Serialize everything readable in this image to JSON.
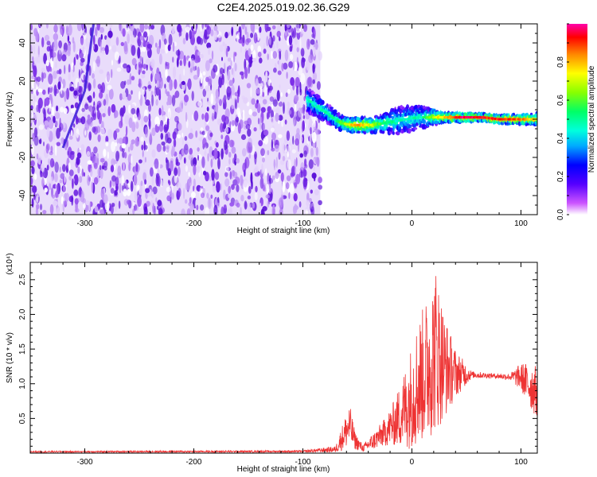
{
  "figure": {
    "title": "C2E4.2025.019.02.36.G29"
  },
  "colors": {
    "line": "#ee3333",
    "axis": "#000000",
    "background": "#ffffff",
    "noise": "#7b2ee8"
  },
  "chart_data": [
    {
      "type": "heatmap",
      "xlabel": "Height of straight line (km)",
      "ylabel": "Frequency (Hz)",
      "xlim": [
        -350,
        115
      ],
      "ylim": [
        -50,
        50
      ],
      "x_ticks": [
        -300,
        -200,
        -100,
        0,
        100
      ],
      "x_tick_labels": [
        "-300",
        "-200",
        "-100",
        "0",
        "100"
      ],
      "y_ticks": [
        -40,
        -20,
        0,
        20,
        40
      ],
      "y_tick_labels": [
        "-40",
        "-20",
        "0",
        "20",
        "40"
      ],
      "colorbar": {
        "label": "Normalized spectral amplitude",
        "range": [
          0,
          1
        ],
        "ticks": [
          0.0,
          0.2,
          0.4,
          0.6,
          0.8
        ],
        "tick_labels": [
          "0.0",
          "0.2",
          "0.4",
          "0.6",
          "0.8"
        ]
      },
      "noise_region_x": [
        -350,
        -84
      ],
      "signal_ridge": [
        {
          "x": -95,
          "f": 10
        },
        {
          "x": -85,
          "f": 6
        },
        {
          "x": -75,
          "f": 2
        },
        {
          "x": -65,
          "f": -2
        },
        {
          "x": -55,
          "f": -3
        },
        {
          "x": -45,
          "f": -3
        },
        {
          "x": -35,
          "f": -3
        },
        {
          "x": -25,
          "f": -2
        },
        {
          "x": -15,
          "f": -1
        },
        {
          "x": -5,
          "f": 0
        },
        {
          "x": 5,
          "f": 1
        },
        {
          "x": 15,
          "f": 1
        },
        {
          "x": 25,
          "f": 1
        },
        {
          "x": 35,
          "f": 1
        },
        {
          "x": 50,
          "f": 1
        },
        {
          "x": 65,
          "f": 1
        },
        {
          "x": 80,
          "f": 0
        },
        {
          "x": 95,
          "f": 0
        },
        {
          "x": 110,
          "f": 0
        }
      ],
      "signal_width": [
        {
          "x": -95,
          "w": 10
        },
        {
          "x": -60,
          "w": 6
        },
        {
          "x": -30,
          "w": 7
        },
        {
          "x": -10,
          "w": 12
        },
        {
          "x": 10,
          "w": 9
        },
        {
          "x": 30,
          "w": 4
        },
        {
          "x": 60,
          "w": 3
        },
        {
          "x": 100,
          "w": 4
        },
        {
          "x": 115,
          "w": 5
        }
      ],
      "signal_amplitude": [
        {
          "x": -95,
          "a": 0.45
        },
        {
          "x": -70,
          "a": 0.5
        },
        {
          "x": -50,
          "a": 0.85
        },
        {
          "x": -30,
          "a": 0.6
        },
        {
          "x": -10,
          "a": 0.45
        },
        {
          "x": 10,
          "a": 0.5
        },
        {
          "x": 25,
          "a": 0.75
        },
        {
          "x": 45,
          "a": 0.95
        },
        {
          "x": 80,
          "a": 0.9
        },
        {
          "x": 100,
          "a": 0.85
        },
        {
          "x": 115,
          "a": 0.7
        }
      ],
      "secondary_trace": [
        {
          "x": -320,
          "f": -15
        },
        {
          "x": -300,
          "f": 15
        },
        {
          "x": -292,
          "f": 50
        }
      ]
    },
    {
      "type": "line",
      "xlabel": "Height of straight line (km)",
      "ylabel": "SNR (10 * v/v)",
      "y_multiplier_label": "(x10⁴)",
      "xlim": [
        -350,
        115
      ],
      "ylim": [
        0,
        2.75
      ],
      "x_ticks": [
        -300,
        -200,
        -100,
        0,
        100
      ],
      "x_tick_labels": [
        "-300",
        "-200",
        "-100",
        "0",
        "100"
      ],
      "y_ticks": [
        0.5,
        1.0,
        1.5,
        2.0,
        2.5
      ],
      "y_tick_labels": [
        "0.5",
        "1.0",
        "1.5",
        "2.0",
        "2.5"
      ],
      "series": [
        {
          "color": "#ee3333",
          "envelope": [
            {
              "x": -350,
              "lo": 0.01,
              "hi": 0.03
            },
            {
              "x": -100,
              "lo": 0.01,
              "hi": 0.04
            },
            {
              "x": -70,
              "lo": 0.01,
              "hi": 0.1
            },
            {
              "x": -62,
              "lo": 0.05,
              "hi": 0.5
            },
            {
              "x": -57,
              "lo": 0.1,
              "hi": 0.7
            },
            {
              "x": -52,
              "lo": 0.05,
              "hi": 0.3
            },
            {
              "x": -45,
              "lo": 0.02,
              "hi": 0.12
            },
            {
              "x": -35,
              "lo": 0.05,
              "hi": 0.3
            },
            {
              "x": -25,
              "lo": 0.1,
              "hi": 0.5
            },
            {
              "x": -15,
              "lo": 0.1,
              "hi": 0.8
            },
            {
              "x": -5,
              "lo": 0.05,
              "hi": 1.3
            },
            {
              "x": 5,
              "lo": 0.1,
              "hi": 1.9
            },
            {
              "x": 15,
              "lo": 0.2,
              "hi": 2.3
            },
            {
              "x": 22,
              "lo": 0.3,
              "hi": 2.7
            },
            {
              "x": 30,
              "lo": 0.5,
              "hi": 2.0
            },
            {
              "x": 40,
              "lo": 0.8,
              "hi": 1.5
            },
            {
              "x": 55,
              "lo": 1.08,
              "hi": 1.18
            },
            {
              "x": 75,
              "lo": 1.08,
              "hi": 1.15
            },
            {
              "x": 90,
              "lo": 1.05,
              "hi": 1.15
            },
            {
              "x": 100,
              "lo": 0.9,
              "hi": 1.3
            },
            {
              "x": 110,
              "lo": 0.6,
              "hi": 1.3
            },
            {
              "x": 115,
              "lo": 0.5,
              "hi": 1.25
            }
          ]
        }
      ]
    }
  ]
}
